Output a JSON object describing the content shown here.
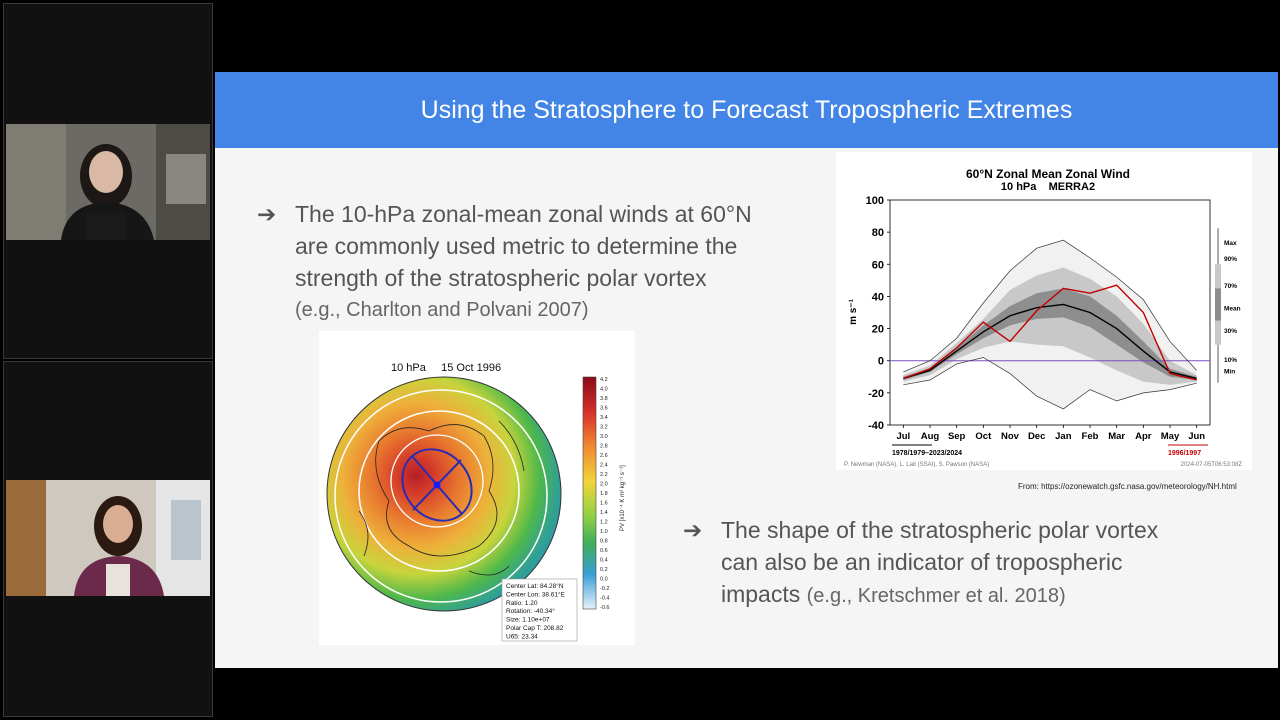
{
  "slide": {
    "title": "Using the Stratosphere to Forecast Tropospheric Extremes",
    "bullet1": {
      "line1": "The 10-hPa zonal-mean zonal winds at 60°N",
      "line2": "are commonly used metric to determine the",
      "line3": "strength of the stratospheric polar vortex",
      "citation": "(e.g., Charlton and Polvani 2007)"
    },
    "bullet2": {
      "line1": "The shape of the stratospheric polar vortex",
      "line2": "can also be an indicator of tropospheric",
      "line3": "impacts",
      "citation": "(e.g., Kretschmer et al. 2018)"
    },
    "source_text": "From:  https://ozonewatch.gsfc.nasa.gov/meteorology/NH.html"
  },
  "map": {
    "title": "10 hPa     15 Oct 1996",
    "colorbar_label": "PV  [x10⁻⁴ K m² kg⁻¹ s⁻¹]",
    "colorbar_ticks": [
      "4.2",
      "4.0",
      "3.8",
      "3.6",
      "3.4",
      "3.2",
      "3.0",
      "2.8",
      "2.6",
      "2.4",
      "2.2",
      "2.0",
      "1.8",
      "1.6",
      "1.4",
      "1.2",
      "1.0",
      "0.8",
      "0.6",
      "0.4",
      "0.2",
      "0.0",
      "-0.2",
      "-0.4",
      "-0.6"
    ],
    "info": [
      "Center Lat: 84.28°N",
      "Center Lon: 38.61°E",
      "Ratio:  1.20",
      "Rotation: -40.34°",
      "Size: 1.10e+07",
      "Polar Cap T: 208.82",
      "U65: 23.34"
    ]
  },
  "chart_data": {
    "type": "line",
    "title": "60°N Zonal Mean Zonal Wind",
    "subtitle": "10 hPa    MERRA2",
    "ylabel": "m s⁻¹",
    "ylim": [
      -40,
      100
    ],
    "yticks": [
      100,
      80,
      60,
      40,
      20,
      0,
      -20,
      -40
    ],
    "categories": [
      "Jul",
      "Aug",
      "Sep",
      "Oct",
      "Nov",
      "Dec",
      "Jan",
      "Feb",
      "Mar",
      "Apr",
      "May",
      "Jun"
    ],
    "x": [
      0,
      1,
      2,
      3,
      4,
      5,
      6,
      7,
      8,
      9,
      10,
      11
    ],
    "legend": [
      "Max",
      "90%",
      "70%",
      "Mean",
      "30%",
      "10%",
      "Min"
    ],
    "legend_position": "right",
    "period_label": "1978/1979–2023/2024",
    "highlight_label": "1996/1997",
    "credit": "P. Newman (NASA), L. Lait (SSAI), S. Pawson (NASA)",
    "timestamp": "2024-07-05T06:53:08Z",
    "colors": {
      "highlight": "#c00000",
      "mean": "#000000",
      "zero_line": "#7a4fc0"
    },
    "series": [
      {
        "name": "Max",
        "values": [
          -7,
          0,
          14,
          36,
          56,
          70,
          75,
          64,
          52,
          38,
          12,
          -6
        ]
      },
      {
        "name": "90%",
        "values": [
          -9,
          -3,
          11,
          26,
          44,
          53,
          58,
          51,
          40,
          23,
          0,
          -9
        ]
      },
      {
        "name": "70%",
        "values": [
          -10,
          -5,
          8,
          22,
          34,
          42,
          45,
          40,
          28,
          12,
          -5,
          -10
        ]
      },
      {
        "name": "Mean",
        "values": [
          -11,
          -6,
          6,
          18,
          28,
          33,
          35,
          30,
          20,
          6,
          -7,
          -11
        ]
      },
      {
        "name": "30%",
        "values": [
          -12,
          -7,
          4,
          14,
          22,
          26,
          27,
          21,
          10,
          -1,
          -10,
          -12
        ]
      },
      {
        "name": "10%",
        "values": [
          -13,
          -9,
          1,
          8,
          12,
          10,
          9,
          2,
          -6,
          -13,
          -15,
          -13
        ]
      },
      {
        "name": "Min",
        "values": [
          -15,
          -12,
          -2,
          2,
          -8,
          -22,
          -30,
          -18,
          -25,
          -20,
          -18,
          -14
        ]
      },
      {
        "name": "1996/1997",
        "values": [
          -11,
          -5,
          8,
          24,
          12,
          31,
          45,
          42,
          47,
          30,
          -8,
          -12
        ]
      }
    ]
  }
}
